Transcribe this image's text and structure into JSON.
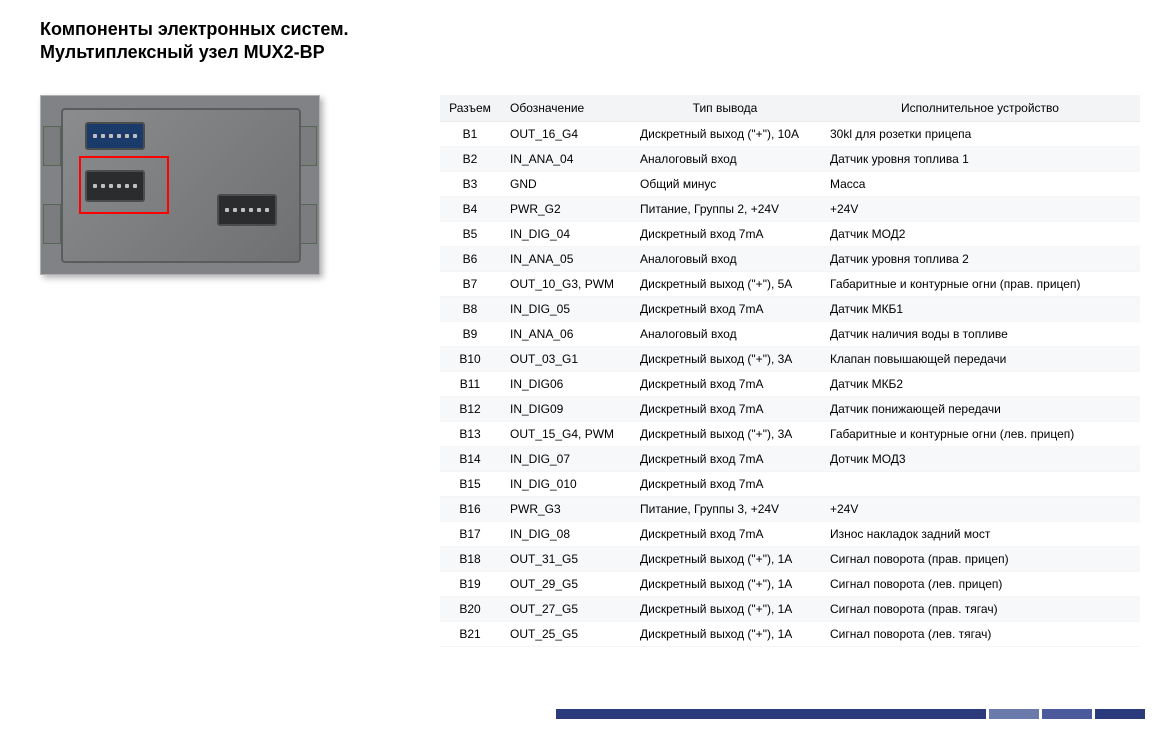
{
  "header": {
    "line1": "Компоненты электронных систем.",
    "line2": "Мультиплексный узел MUX2-BP"
  },
  "table": {
    "columns": [
      "Разъем",
      "Обозначение",
      "Тип вывода",
      "Исполнительное устройство"
    ],
    "rows": [
      [
        "B1",
        "OUT_16_G4",
        "Дискретный выход (\"+\"), 10А",
        "30kl для розетки прицепа"
      ],
      [
        "B2",
        "IN_ANA_04",
        "Аналоговый вход",
        "Датчик уровня топлива 1"
      ],
      [
        "B3",
        "GND",
        "Общий минус",
        "Масса"
      ],
      [
        "B4",
        "PWR_G2",
        "Питание, Группы 2, +24V",
        "+24V"
      ],
      [
        "B5",
        "IN_DIG_04",
        "Дискретный вход 7mA",
        "Датчик МОД2"
      ],
      [
        "B6",
        "IN_ANA_05",
        "Аналоговый вход",
        "Датчик уровня топлива 2"
      ],
      [
        "B7",
        "OUT_10_G3, PWM",
        "Дискретный выход (\"+\"), 5А",
        "Габаритные и контурные огни (прав. прицеп)"
      ],
      [
        "B8",
        "IN_DIG_05",
        "Дискретный вход 7mA",
        "Датчик МКБ1"
      ],
      [
        "B9",
        "IN_ANA_06",
        "Аналоговый вход",
        "Датчик наличия воды в топливе"
      ],
      [
        "B10",
        "OUT_03_G1",
        "Дискретный выход (\"+\"), 3А",
        "Клапан повышающей передачи"
      ],
      [
        "B11",
        "IN_DIG06",
        "Дискретный вход 7mA",
        "Датчик МКБ2"
      ],
      [
        "B12",
        "IN_DIG09",
        "Дискретный вход 7mA",
        "Датчик понижающей передачи"
      ],
      [
        "B13",
        "OUT_15_G4, PWM",
        "Дискретный выход (\"+\"), 3А",
        "Габаритные и контурные огни (лев. прицеп)"
      ],
      [
        "B14",
        "IN_DIG_07",
        "Дискретный вход 7mA",
        "Дотчик МОД3"
      ],
      [
        "B15",
        "IN_DIG_010",
        "Дискретный вход 7mA",
        ""
      ],
      [
        "B16",
        "PWR_G3",
        "Питание, Группы 3, +24V",
        "+24V"
      ],
      [
        "B17",
        "IN_DIG_08",
        "Дискретный вход 7mA",
        "Износ накладок задний мост"
      ],
      [
        "B18",
        "OUT_31_G5",
        "Дискретный выход (\"+\"), 1А",
        "Сигнал поворота (прав. прицеп)"
      ],
      [
        "B19",
        "OUT_29_G5",
        "Дискретный выход (\"+\"), 1А",
        "Сигнал поворота (лев. прицеп)"
      ],
      [
        "B20",
        "OUT_27_G5",
        "Дискретный выход (\"+\"), 1А",
        "Сигнал поворота (прав. тягач)"
      ],
      [
        "B21",
        "OUT_25_G5",
        "Дискретный выход (\"+\"), 1А",
        "Сигнал поворота (лев. тягач)"
      ]
    ],
    "header_bg": "#f2f4f6",
    "row_even_bg": "#f7f8fa",
    "row_odd_bg": "#ffffff",
    "font_size": 12,
    "text_color": "#000000"
  },
  "module_image": {
    "body_color": "#808285",
    "highlight_color": "#ff0000",
    "connector_blue": "#1a3a6a",
    "connector_dark": "#2a2c2e"
  },
  "footer": {
    "bar_colors": [
      "#2a3a7a",
      "#6a7aaa",
      "#4a5a9a",
      "#2a3a7a"
    ]
  }
}
